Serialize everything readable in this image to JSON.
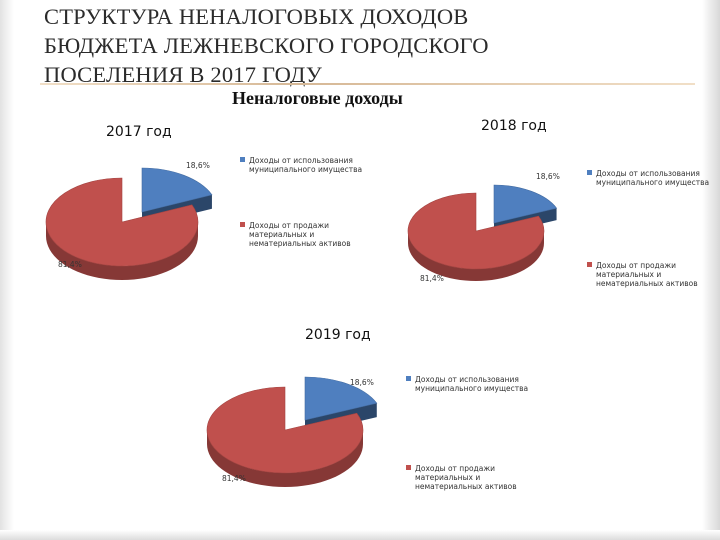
{
  "title": {
    "lines": [
      "СТРУКТУРА НЕНАЛОГОВЫХ ДОХОДОВ",
      "БЮДЖЕТА ЛЕЖНЕВСКОГО ГОРОДСКОГО",
      "ПОСЕЛЕНИЯ В 2017 ГОДУ"
    ]
  },
  "subtitle": "Неналоговые доходы",
  "colors": {
    "municipal_property": "#4f7fbf",
    "asset_sales": "#c0504d"
  },
  "chart_data": [
    {
      "type": "pie",
      "title": "2017 год",
      "categories": [
        "Доходы от использования муниципального имущества",
        "Доходы от продажи материальных и нематериальных активов"
      ],
      "values": [
        18.6,
        81.4
      ],
      "labels": [
        "18,6%",
        "81,4%"
      ],
      "legend": "right",
      "legend_lines": [
        [
          "Доходы от использования",
          "муниципального имущества"
        ],
        [
          "Доходы от продажи",
          "материальных и",
          "нематериальных активов"
        ]
      ]
    },
    {
      "type": "pie",
      "title": "2018 год",
      "categories": [
        "Доходы от использования муниципального имущества",
        "Доходы от продажи материальных и нематериальных активов"
      ],
      "values": [
        18.6,
        81.4
      ],
      "labels": [
        "18,6%",
        "81,4%"
      ],
      "legend": "right",
      "legend_lines": [
        [
          "Доходы от использования",
          "муниципального имущества"
        ],
        [
          "Доходы от продажи",
          "материальных и",
          "нематериальных активов"
        ]
      ]
    },
    {
      "type": "pie",
      "title": "2019 год",
      "categories": [
        "Доходы от использования муниципального имущества",
        "Доходы от продажи материальных и нематериальных активов"
      ],
      "values": [
        18.6,
        81.4
      ],
      "labels": [
        "18,6%",
        "81,4%"
      ],
      "legend": "right",
      "legend_lines": [
        [
          "Доходы от использования",
          "муниципального имущества"
        ],
        [
          "Доходы от продажи",
          "материальных и",
          "нематериальных активов"
        ]
      ]
    }
  ]
}
